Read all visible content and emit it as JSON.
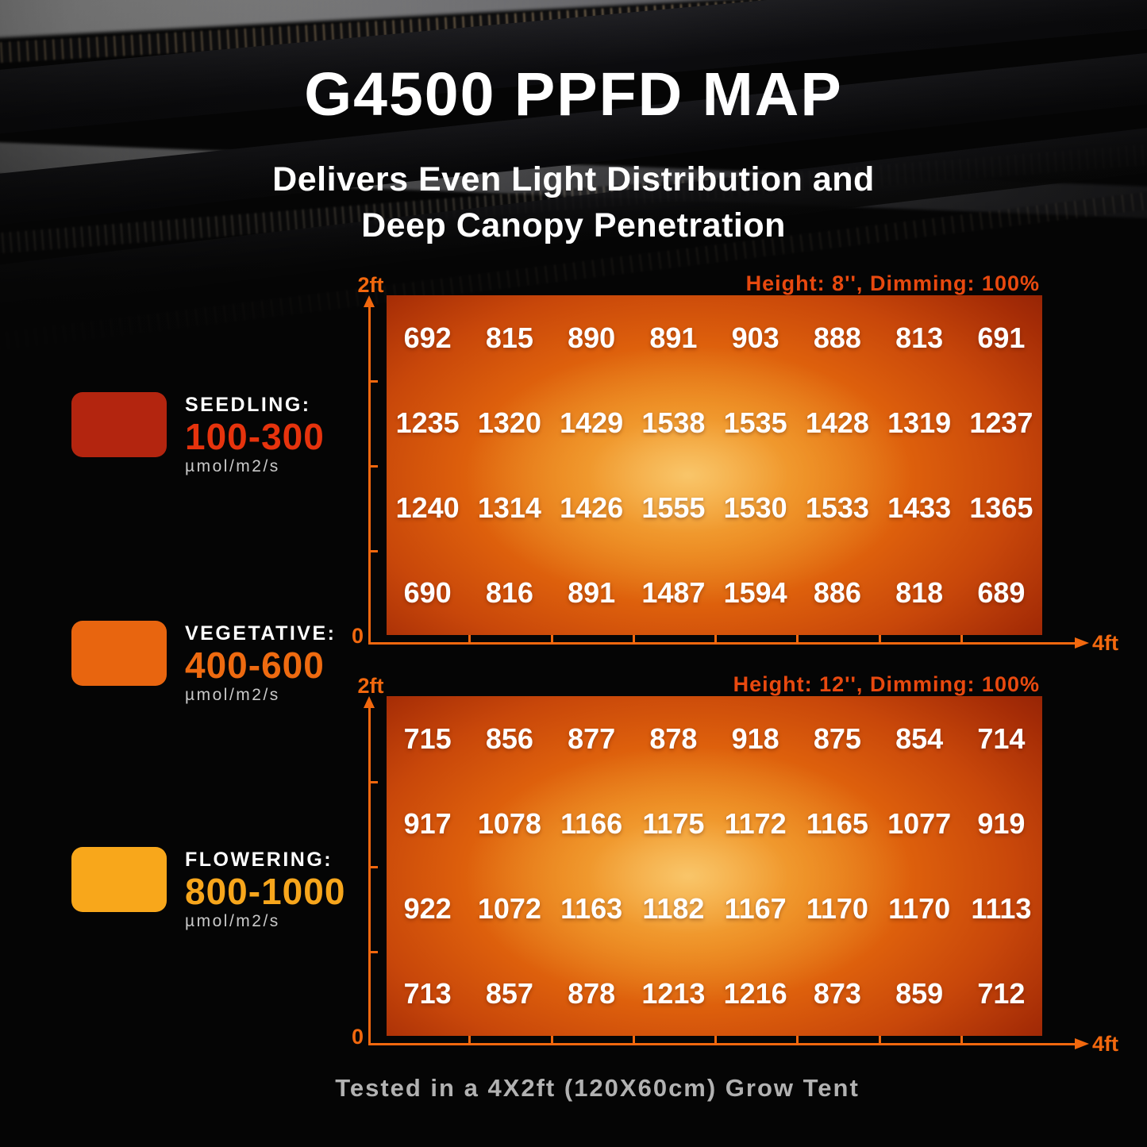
{
  "page": {
    "title": "G4500 PPFD MAP",
    "subtitle": [
      "Delivers Even Light Distribution and",
      "Deep Canopy Penetration"
    ],
    "footer": "Tested in a 4X2ft (120X60cm) Grow Tent"
  },
  "legend": {
    "items": [
      {
        "stage": "SEEDLING:",
        "range": "100-300",
        "unit": "µmol/m2/s",
        "swatch_color": "#b3250f",
        "range_color": "#e6330d"
      },
      {
        "stage": "VEGETATIVE:",
        "range": "400-600",
        "unit": "µmol/m2/s",
        "swatch_color": "#e8650f",
        "range_color": "#ee6a10"
      },
      {
        "stage": "FLOWERING:",
        "range": "800-1000",
        "unit": "µmol/m2/s",
        "swatch_color": "#f8a71b",
        "range_color": "#f7a61c"
      }
    ]
  },
  "chart_data": [
    {
      "type": "heatmap",
      "title": "Height: 8'', Dimming: 100%",
      "unit": "µmol/m2/s",
      "x_axis": {
        "origin_label": "0",
        "end_label": "4ft",
        "segments": 8
      },
      "y_axis": {
        "origin_label": "0",
        "end_label": "2ft",
        "segments": 4
      },
      "values": [
        [
          692,
          815,
          890,
          891,
          903,
          888,
          813,
          691
        ],
        [
          1235,
          1320,
          1429,
          1538,
          1535,
          1428,
          1319,
          1237
        ],
        [
          1240,
          1314,
          1426,
          1555,
          1530,
          1533,
          1433,
          1365
        ],
        [
          690,
          816,
          891,
          1487,
          1594,
          886,
          818,
          689
        ]
      ]
    },
    {
      "type": "heatmap",
      "title": "Height: 12'', Dimming: 100%",
      "unit": "µmol/m2/s",
      "x_axis": {
        "origin_label": "0",
        "end_label": "4ft",
        "segments": 8
      },
      "y_axis": {
        "origin_label": "0",
        "end_label": "2ft",
        "segments": 4
      },
      "values": [
        [
          715,
          856,
          877,
          878,
          918,
          875,
          854,
          714
        ],
        [
          917,
          1078,
          1166,
          1175,
          1172,
          1165,
          1077,
          919
        ],
        [
          922,
          1072,
          1163,
          1182,
          1167,
          1170,
          1170,
          1113
        ],
        [
          713,
          857,
          878,
          1213,
          1216,
          873,
          859,
          712
        ]
      ]
    }
  ],
  "colors": {
    "axis": "#f2680e",
    "chart_header": "#e8490f",
    "heatmap_center": "#f6bb63",
    "heatmap_edge": "#7a1704"
  }
}
